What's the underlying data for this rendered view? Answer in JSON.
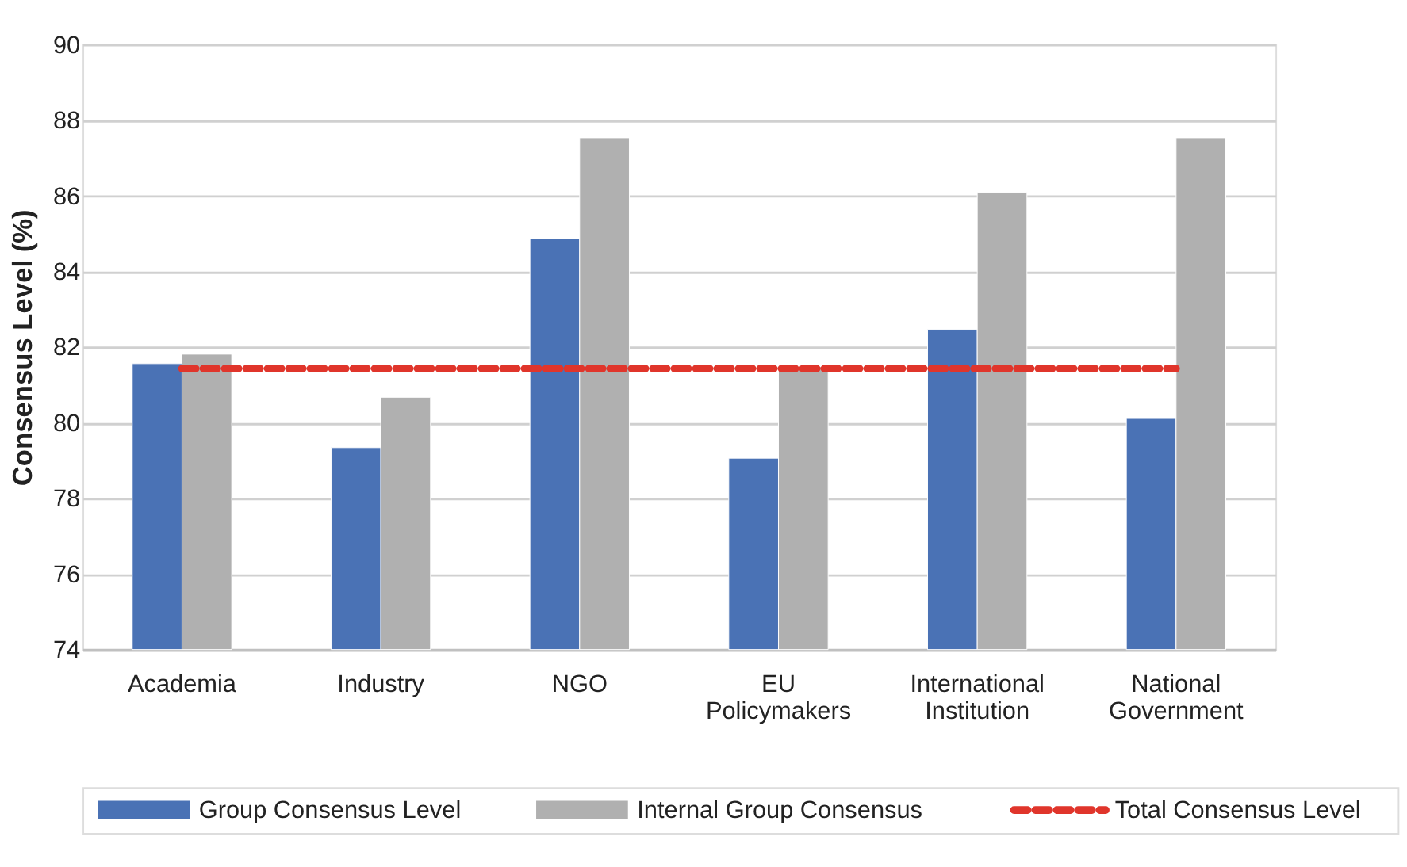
{
  "chart_data": {
    "type": "bar",
    "ylabel": "Consensus Level (%)",
    "categories": [
      "Academia",
      "Industry",
      "NGO",
      "EU Policymakers",
      "International Institution",
      "National Government"
    ],
    "series": [
      {
        "name": "Group Consensus Level",
        "color": "#4a72b5",
        "values": [
          81.56,
          79.34,
          84.86,
          79.06,
          82.47,
          80.11
        ]
      },
      {
        "name": "Internal Group Consensus",
        "color": "#b0b0b0",
        "values": [
          81.81,
          80.67,
          87.53,
          81.48,
          86.09,
          87.53
        ]
      },
      {
        "name": "Total Consensus Level",
        "color": "#e0352b",
        "type": "line",
        "line_style": "dashed",
        "values": [
          81.43,
          81.43,
          81.43,
          81.43,
          81.43,
          81.43
        ]
      }
    ],
    "ylim": [
      74,
      90
    ],
    "yticks": [
      74,
      76,
      78,
      80,
      82,
      84,
      86,
      88,
      90
    ],
    "grid": "y",
    "legend": "bottom"
  }
}
